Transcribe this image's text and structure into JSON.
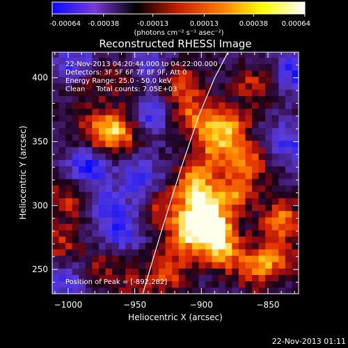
{
  "colorbar": {
    "min": -0.00064,
    "max": 0.00064,
    "tick_labels": [
      "-0.00064",
      "-0.00038",
      "-0.00013",
      "0.00013",
      "0.00038",
      "0.00064"
    ],
    "tick_values": [
      -0.00064,
      -0.00038,
      -0.00013,
      0.00013,
      0.00038,
      0.00064
    ],
    "units_label": "(photons cm⁻² s⁻¹ asec⁻²)",
    "colors": [
      "#0a0aff",
      "#7a3ad8",
      "#000000",
      "#c81e00",
      "#ff7a00",
      "#ffff00",
      "#ffffff"
    ]
  },
  "footer": {
    "timestamp": "22-Nov-2013 01:11"
  },
  "chart_data": {
    "type": "heatmap",
    "title": "Reconstructed RHESSI Image",
    "xlabel": "Heliocentric X (arcsec)",
    "ylabel": "Heliocentric Y (arcsec)",
    "xlim": [
      -1012,
      -827
    ],
    "ylim": [
      231,
      420
    ],
    "x_ticks": [
      -1000,
      -950,
      -900,
      -850
    ],
    "x_tick_labels": [
      "−1000",
      "−950",
      "−900",
      "−850"
    ],
    "y_ticks": [
      250,
      300,
      350,
      400
    ],
    "y_tick_labels": [
      "250",
      "300",
      "350",
      "400"
    ],
    "info_lines": [
      "22-Nov-2013 04:20:44.000 to 04:22:00.000",
      "Detectors: 3F 5F 6F 7F 8F 9F, Att 0",
      "Energy Range: 25.0 - 50.0 keV",
      "Clean     Total counts: 7.05E+03"
    ],
    "peak_label": "Position of Peak = [-892,282]",
    "peak_position": [
      -892,
      282
    ],
    "limb_curve": {
      "x": [
        -944,
        -930,
        -915,
        -902,
        -890,
        -880
      ],
      "y": [
        231,
        280,
        330,
        370,
        400,
        420
      ]
    },
    "hot_regions": [
      {
        "x": -968,
        "y": 356,
        "intensity": 0.0004
      },
      {
        "x": -957,
        "y": 362,
        "intensity": 0.0003
      },
      {
        "x": -980,
        "y": 360,
        "intensity": 0.00025
      },
      {
        "x": -892,
        "y": 282,
        "intensity": 0.00064
      },
      {
        "x": -900,
        "y": 300,
        "intensity": 0.0006
      },
      {
        "x": -910,
        "y": 280,
        "intensity": 0.00055
      },
      {
        "x": -885,
        "y": 265,
        "intensity": 0.0005
      },
      {
        "x": -905,
        "y": 320,
        "intensity": 0.00045
      },
      {
        "x": -875,
        "y": 310,
        "intensity": 0.00045
      },
      {
        "x": -890,
        "y": 345,
        "intensity": 0.0004
      },
      {
        "x": -880,
        "y": 362,
        "intensity": 0.0005
      },
      {
        "x": -865,
        "y": 335,
        "intensity": 0.0004
      },
      {
        "x": -905,
        "y": 370,
        "intensity": 0.00042
      },
      {
        "x": -860,
        "y": 395,
        "intensity": 0.0003
      },
      {
        "x": -915,
        "y": 395,
        "intensity": 0.00035
      },
      {
        "x": -840,
        "y": 290,
        "intensity": 0.00045
      },
      {
        "x": -845,
        "y": 260,
        "intensity": 0.0004
      },
      {
        "x": -860,
        "y": 250,
        "intensity": 0.00035
      },
      {
        "x": -925,
        "y": 250,
        "intensity": 0.0004
      },
      {
        "x": -930,
        "y": 300,
        "intensity": 0.0003
      },
      {
        "x": -1000,
        "y": 305,
        "intensity": 0.0003
      },
      {
        "x": -1005,
        "y": 270,
        "intensity": 0.00028
      },
      {
        "x": -985,
        "y": 395,
        "intensity": 0.00022
      },
      {
        "x": -955,
        "y": 400,
        "intensity": 0.0002
      },
      {
        "x": -975,
        "y": 250,
        "intensity": 0.00022
      },
      {
        "x": -950,
        "y": 240,
        "intensity": 0.00018
      }
    ],
    "cold_regions": [
      {
        "x": -985,
        "y": 330,
        "intensity": -0.00045
      },
      {
        "x": -945,
        "y": 320,
        "intensity": -0.0004
      },
      {
        "x": -995,
        "y": 410,
        "intensity": -0.00035
      },
      {
        "x": -940,
        "y": 370,
        "intensity": -0.00038
      },
      {
        "x": -960,
        "y": 280,
        "intensity": -0.00035
      },
      {
        "x": -1000,
        "y": 240,
        "intensity": -0.0003
      },
      {
        "x": -940,
        "y": 410,
        "intensity": -0.0003
      },
      {
        "x": -830,
        "y": 405,
        "intensity": -0.0004
      },
      {
        "x": -835,
        "y": 350,
        "intensity": -0.00035
      },
      {
        "x": -970,
        "y": 300,
        "intensity": -0.00025
      }
    ]
  }
}
